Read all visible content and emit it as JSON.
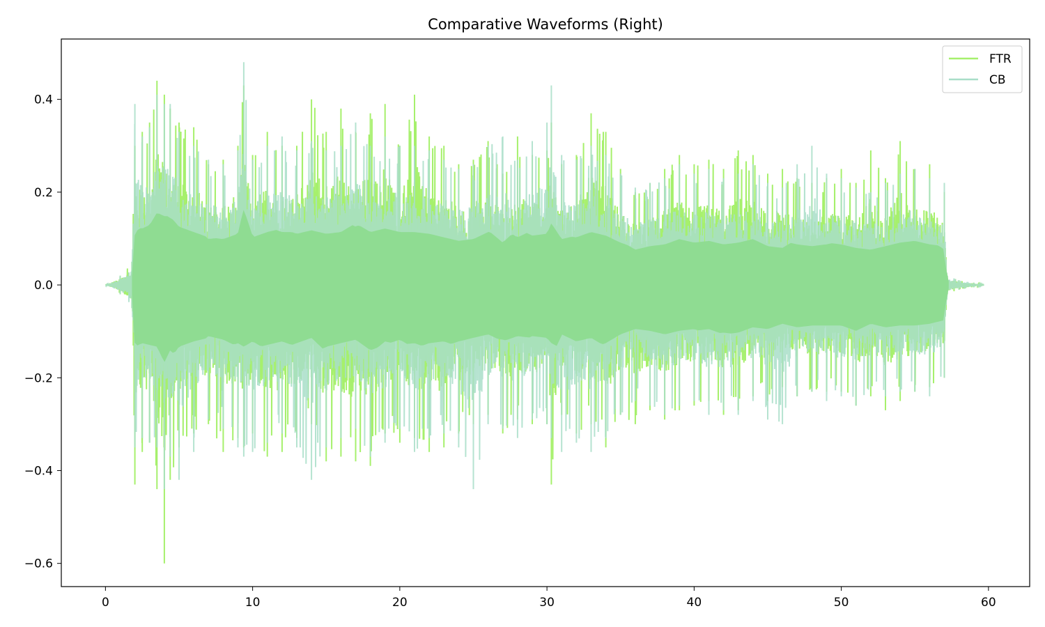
{
  "chart_data": {
    "type": "line",
    "title": "Comparative Waveforms (Right)",
    "xlabel": "",
    "ylabel": "",
    "xlim": [
      -3,
      62.8
    ],
    "ylim": [
      -0.65,
      0.53
    ],
    "x_ticks": [
      0,
      10,
      20,
      30,
      40,
      50,
      60
    ],
    "x_tick_labels": [
      "0",
      "10",
      "20",
      "30",
      "40",
      "50",
      "60"
    ],
    "y_ticks": [
      -0.6,
      -0.4,
      -0.2,
      0.0,
      0.2,
      0.4
    ],
    "y_tick_labels": [
      "−0.6",
      "−0.4",
      "−0.2",
      "0.0",
      "0.2",
      "0.4"
    ],
    "grid": false,
    "legend_position": "top-right",
    "series": [
      {
        "name": "FTR",
        "color": "#a6f06c",
        "x": [
          0,
          1,
          1.8,
          2.0,
          2.5,
          3,
          3.5,
          4,
          4.4,
          5,
          6,
          7,
          8,
          9,
          9.4,
          10,
          11,
          12,
          13,
          14,
          15,
          16,
          17,
          18,
          19,
          20,
          21,
          22,
          23,
          24,
          25,
          26,
          27,
          28,
          29,
          30,
          30.3,
          31,
          32,
          33,
          34,
          35,
          36,
          37,
          38,
          39,
          40,
          41,
          42,
          43,
          44,
          45,
          46,
          47,
          48,
          49,
          50,
          51,
          52,
          53,
          54,
          55,
          56,
          57,
          57.2,
          58,
          59,
          59.7
        ],
        "max": [
          0.0,
          0.02,
          0.05,
          0.3,
          0.33,
          0.35,
          0.44,
          0.41,
          0.38,
          0.35,
          0.34,
          0.26,
          0.27,
          0.3,
          0.43,
          0.28,
          0.33,
          0.3,
          0.3,
          0.4,
          0.33,
          0.38,
          0.33,
          0.37,
          0.39,
          0.3,
          0.41,
          0.32,
          0.3,
          0.26,
          0.27,
          0.31,
          0.24,
          0.32,
          0.28,
          0.29,
          0.35,
          0.26,
          0.28,
          0.37,
          0.33,
          0.25,
          0.2,
          0.22,
          0.25,
          0.28,
          0.26,
          0.27,
          0.25,
          0.29,
          0.28,
          0.24,
          0.25,
          0.23,
          0.22,
          0.23,
          0.25,
          0.22,
          0.29,
          0.23,
          0.31,
          0.25,
          0.26,
          0.2,
          0.02,
          0.01,
          0.005,
          0.0
        ],
        "min": [
          0.0,
          -0.02,
          -0.05,
          -0.43,
          -0.36,
          -0.34,
          -0.44,
          -0.6,
          -0.42,
          -0.35,
          -0.32,
          -0.3,
          -0.36,
          -0.33,
          -0.35,
          -0.32,
          -0.37,
          -0.36,
          -0.33,
          -0.3,
          -0.38,
          -0.37,
          -0.38,
          -0.39,
          -0.32,
          -0.34,
          -0.33,
          -0.36,
          -0.35,
          -0.32,
          -0.3,
          -0.28,
          -0.32,
          -0.29,
          -0.3,
          -0.3,
          -0.43,
          -0.28,
          -0.32,
          -0.3,
          -0.35,
          -0.28,
          -0.3,
          -0.27,
          -0.29,
          -0.27,
          -0.26,
          -0.25,
          -0.28,
          -0.27,
          -0.24,
          -0.25,
          -0.22,
          -0.24,
          -0.23,
          -0.23,
          -0.23,
          -0.26,
          -0.24,
          -0.27,
          -0.25,
          -0.23,
          -0.22,
          -0.2,
          -0.02,
          -0.01,
          -0.005,
          0.0
        ]
      },
      {
        "name": "CB",
        "color": "#a8dec8",
        "x": [
          0,
          1,
          1.8,
          2.0,
          2.5,
          3,
          3.5,
          4,
          4.4,
          5,
          6,
          7,
          8,
          9,
          9.4,
          10,
          11,
          12,
          13,
          14,
          15,
          16,
          17,
          18,
          19,
          20,
          21,
          22,
          23,
          24,
          25,
          26,
          27,
          28,
          29,
          30,
          30.3,
          31,
          32,
          33,
          34,
          35,
          36,
          37,
          38,
          39,
          40,
          41,
          42,
          43,
          44,
          45,
          46,
          47,
          48,
          49,
          50,
          51,
          52,
          53,
          54,
          55,
          56,
          57,
          57.2,
          58,
          59,
          59.7
        ],
        "max": [
          0.0,
          0.02,
          0.05,
          0.39,
          0.32,
          0.34,
          0.41,
          0.39,
          0.39,
          0.33,
          0.3,
          0.27,
          0.26,
          0.29,
          0.48,
          0.27,
          0.3,
          0.32,
          0.29,
          0.31,
          0.29,
          0.3,
          0.35,
          0.3,
          0.32,
          0.3,
          0.3,
          0.29,
          0.27,
          0.25,
          0.26,
          0.3,
          0.32,
          0.27,
          0.31,
          0.35,
          0.43,
          0.28,
          0.27,
          0.3,
          0.28,
          0.24,
          0.21,
          0.22,
          0.23,
          0.26,
          0.24,
          0.25,
          0.23,
          0.24,
          0.26,
          0.22,
          0.21,
          0.26,
          0.3,
          0.24,
          0.23,
          0.21,
          0.2,
          0.22,
          0.24,
          0.25,
          0.23,
          0.22,
          0.02,
          0.01,
          0.005,
          0.0
        ],
        "min": [
          0.0,
          -0.02,
          -0.05,
          -0.35,
          -0.33,
          -0.34,
          -0.35,
          -0.44,
          -0.37,
          -0.42,
          -0.36,
          -0.29,
          -0.31,
          -0.35,
          -0.37,
          -0.36,
          -0.34,
          -0.32,
          -0.35,
          -0.42,
          -0.35,
          -0.33,
          -0.31,
          -0.37,
          -0.34,
          -0.31,
          -0.36,
          -0.33,
          -0.32,
          -0.35,
          -0.44,
          -0.3,
          -0.31,
          -0.33,
          -0.29,
          -0.3,
          -0.33,
          -0.36,
          -0.34,
          -0.36,
          -0.33,
          -0.28,
          -0.25,
          -0.26,
          -0.28,
          -0.26,
          -0.25,
          -0.28,
          -0.27,
          -0.28,
          -0.25,
          -0.29,
          -0.3,
          -0.24,
          -0.23,
          -0.25,
          -0.24,
          -0.26,
          -0.22,
          -0.24,
          -0.23,
          -0.23,
          -0.24,
          -0.2,
          -0.02,
          -0.01,
          -0.005,
          0.0
        ]
      }
    ]
  }
}
